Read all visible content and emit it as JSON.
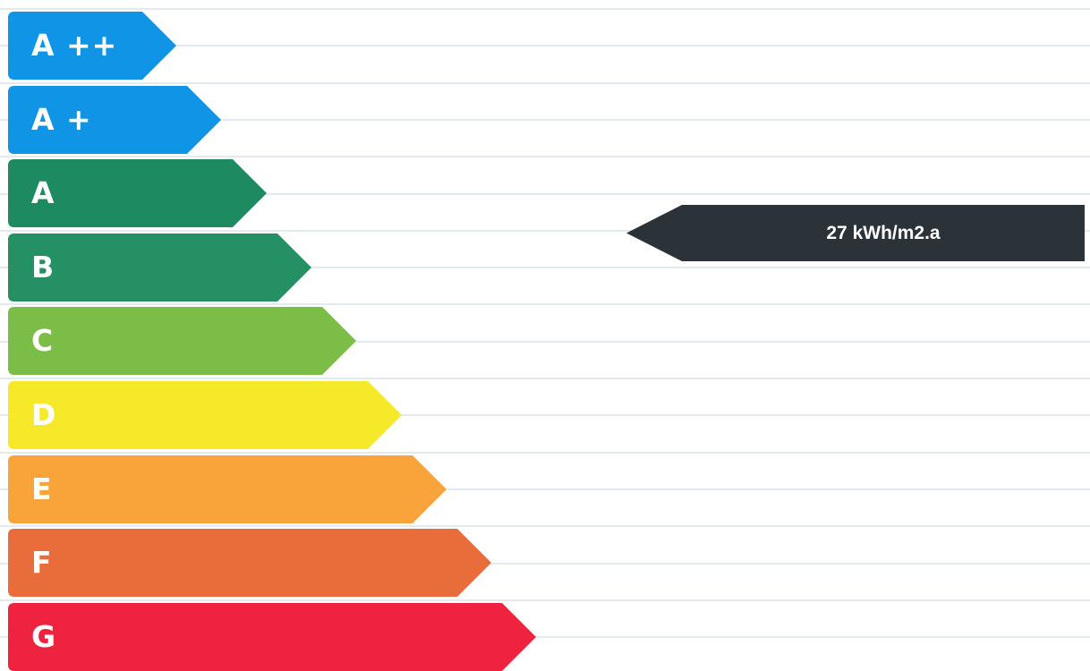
{
  "chart_data": {
    "type": "bar",
    "title": "",
    "categories": [
      "A ++",
      "A +",
      "A",
      "B",
      "C",
      "D",
      "E",
      "F",
      "G"
    ],
    "colors": [
      "#1094e6",
      "#1094e6",
      "#1d8a62",
      "#259063",
      "#7cbd47",
      "#f5e92a",
      "#f9a43a",
      "#e96c3b",
      "#ef2340"
    ],
    "indicator": {
      "text": "27 kWh/m2.a",
      "band": "A",
      "color": "#2b3238"
    },
    "grid": true,
    "legend": "none"
  }
}
